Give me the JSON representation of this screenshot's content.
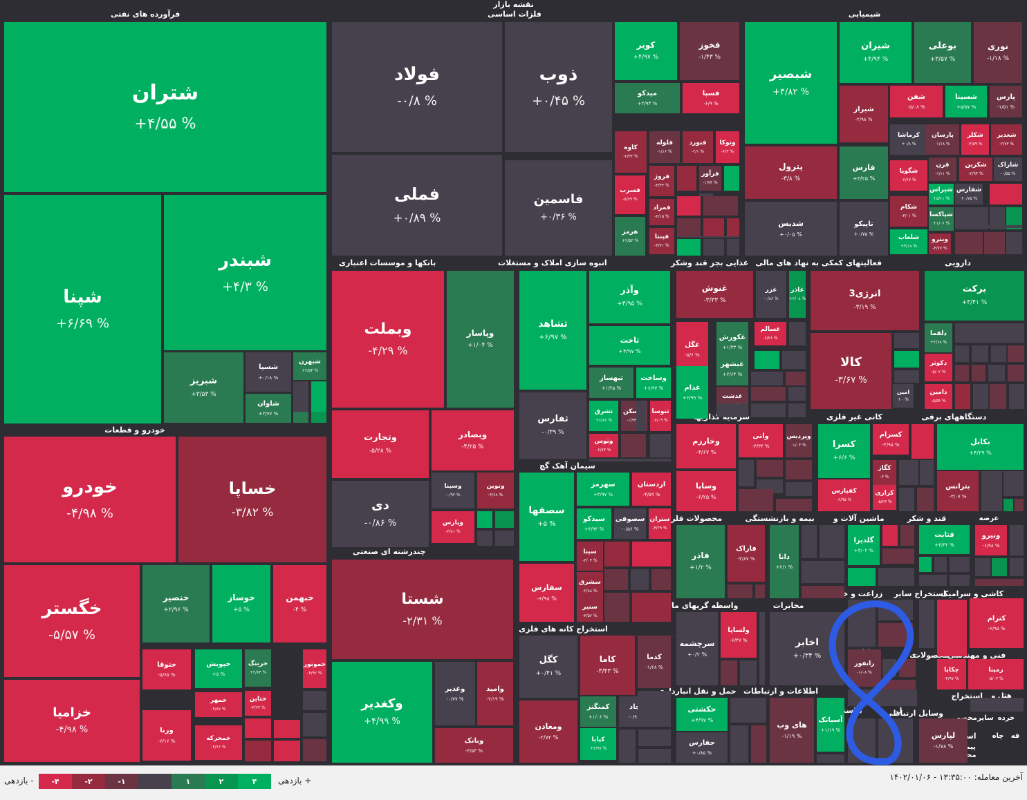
{
  "map_title": "نقشه بازار",
  "colors": {
    "g4": "#00b060",
    "g2": "#08954f",
    "g1": "#2a7a52",
    "neutral": "#46414c",
    "r1": "#6b3442",
    "r2": "#962b40",
    "r4": "#d4294a"
  },
  "sectors": [
    {
      "name": "فرآورده های نفتی"
    },
    {
      "name": "فلزات اساسی"
    },
    {
      "name": "شیمیایی"
    },
    {
      "name": "بانکها و موسسات اعتباری"
    },
    {
      "name": "انبوه سازی املاک و مستغلات"
    },
    {
      "name": "غذایی بجز قند وشکر"
    },
    {
      "name": "فعالیتهای کمکی به نهاد های مالی"
    },
    {
      "name": "دارویی"
    },
    {
      "name": "خودرو و قطعات"
    },
    {
      "name": "سیمان آهک گچ"
    },
    {
      "name": "سرمایه گذاریها"
    },
    {
      "name": "کانی غیر فلزی"
    },
    {
      "name": "دستگاههای برقی"
    },
    {
      "name": "چندرشته ای صنعتی"
    },
    {
      "name": "محصولات فلزی"
    },
    {
      "name": "بیمه و بازنشستگی"
    },
    {
      "name": "ماشین آلات و"
    },
    {
      "name": "قند و شکر"
    },
    {
      "name": "عرضه"
    },
    {
      "name": "واسطه گریهای مالی و پولی"
    },
    {
      "name": "مخابرات"
    },
    {
      "name": "زراعت و خدمات"
    },
    {
      "name": "استخراج سایر"
    },
    {
      "name": "کاشی و سرامیک"
    },
    {
      "name": "استخراج کانه های فلزی"
    },
    {
      "name": "رایانه"
    },
    {
      "name": "محصولات"
    },
    {
      "name": "فنی و مهندسی"
    },
    {
      "name": "حمل و نقل انبارداری و"
    },
    {
      "name": "اطلاعات و ارتباطات"
    },
    {
      "name": "هتل و"
    },
    {
      "name": "استخراج"
    },
    {
      "name": "بلاستیک"
    },
    {
      "name": "وسایل ارتباطی"
    },
    {
      "name": "خرده"
    },
    {
      "name": "سایر"
    },
    {
      "name": "محصو"
    },
    {
      "name": "فه"
    },
    {
      "name": "چاه"
    },
    {
      "name": "استخ"
    },
    {
      "name": "پیمانا"
    },
    {
      "name": "محص"
    },
    {
      "name": "ل"
    },
    {
      "name": "ی"
    }
  ],
  "tiles": [
    {
      "s": "شتران",
      "p": "+۴/۵۵ %",
      "c": "g4"
    },
    {
      "s": "شپنا",
      "p": "+۶/۶۹ %",
      "c": "g4"
    },
    {
      "s": "شبندر",
      "p": "+۴/۳ %",
      "c": "g4"
    },
    {
      "s": "شبریز",
      "p": "+۳/۵۳ %",
      "c": "g1"
    },
    {
      "s": "شسپا",
      "p": "+۰/۱۸ %",
      "c": "neutral"
    },
    {
      "s": "شبهرن",
      "p": "+۲/۵۴ %",
      "c": "g1"
    },
    {
      "s": "شاوان",
      "p": "+۳/۷۷ %",
      "c": "g1"
    },
    {
      "s": "فولاد",
      "p": "-۰/۸ %",
      "c": "neutral"
    },
    {
      "s": "فملی",
      "p": "+۰/۸۹ %",
      "c": "neutral"
    },
    {
      "s": "ذوب",
      "p": "+۰/۴۵ %",
      "c": "neutral"
    },
    {
      "s": "فاسمین",
      "p": "+۰/۳۶ %",
      "c": "neutral"
    },
    {
      "s": "کویر",
      "p": "+۴/۹۷ %",
      "c": "g4"
    },
    {
      "s": "فخوز",
      "p": "-۱/۴۳ %",
      "c": "r1"
    },
    {
      "s": "میدکو",
      "p": "+۲/۹۳ %",
      "c": "g1"
    },
    {
      "s": "فسپا",
      "p": "-۶/۹ %",
      "c": "r4"
    },
    {
      "s": "کاوه",
      "p": "-۲/۳۴ %",
      "c": "r2"
    },
    {
      "s": "فلوله",
      "p": "-۱/۱۶ %",
      "c": "r1"
    },
    {
      "s": "فنورد",
      "p": "-۲/۱ %",
      "c": "r2"
    },
    {
      "s": "وتوکا",
      "p": "-۶/۳ %",
      "c": "r4"
    },
    {
      "s": "فروژ",
      "p": "-۳/۴۴ %",
      "c": "r2"
    },
    {
      "s": "فرآور",
      "p": "-۱/۷۳ %",
      "c": "r1"
    },
    {
      "s": "فسرب",
      "p": "-۵/۶۹ %",
      "c": "r4"
    },
    {
      "s": "فمراد",
      "p": "-۲/۱۵ %",
      "c": "r2"
    },
    {
      "s": "هرمز",
      "p": "+۲/۵۳ %",
      "c": "g1"
    },
    {
      "s": "فپنتا",
      "p": "-۳/۷۱ %",
      "c": "r2"
    },
    {
      "s": "شبصیر",
      "p": "+۴/۸۲ %",
      "c": "g4"
    },
    {
      "s": "شیران",
      "p": "+۴/۹۴ %",
      "c": "g4"
    },
    {
      "s": "بوعلی",
      "p": "+۳/۵۷ %",
      "c": "g1"
    },
    {
      "s": "نوری",
      "p": "-۱/۱۸ %",
      "c": "r1"
    },
    {
      "s": "شیراز",
      "p": "-۲/۹۸ %",
      "c": "r2"
    },
    {
      "s": "شفن",
      "p": "-۵/۰۸ %",
      "c": "r4"
    },
    {
      "s": "شسینا",
      "p": "+۵/۵۷ %",
      "c": "g4"
    },
    {
      "s": "پارس",
      "p": "-۱/۵۱ %",
      "c": "r1"
    },
    {
      "s": "پترول",
      "p": "-۳/۸ %",
      "c": "r2"
    },
    {
      "s": "کرماشا",
      "p": "+۰/۸ %",
      "c": "neutral"
    },
    {
      "s": "پارسان",
      "p": "-۱/۱۸ %",
      "c": "r1"
    },
    {
      "s": "شکلر",
      "p": "-۴/۵۹ %",
      "c": "r4"
    },
    {
      "s": "شغدیر",
      "p": "-۲/۷۳ %",
      "c": "r2"
    },
    {
      "s": "فارس",
      "p": "+۳/۲۵ %",
      "c": "g1"
    },
    {
      "s": "شگویا",
      "p": "-۶/۶۷ %",
      "c": "r4"
    },
    {
      "s": "قرن",
      "p": "-۱/۱۱ %",
      "c": "r1"
    },
    {
      "s": "شکربن",
      "p": "-۲/۹۴ %",
      "c": "r2"
    },
    {
      "s": "شاراک",
      "p": "-۰/۵۵ %",
      "c": "neutral"
    },
    {
      "s": "شیراس",
      "p": "+۵/۱۱ %",
      "c": "g4"
    },
    {
      "s": "شفارس",
      "p": "+۰/۷۵ %",
      "c": "neutral"
    },
    {
      "s": "شکام",
      "p": "-۳/۰۱ %",
      "c": "r2"
    },
    {
      "s": "شپاکسا",
      "p": "+۱/۰۶ %",
      "c": "g1"
    },
    {
      "s": "شدیس",
      "p": "+۰/۰۵ %",
      "c": "neutral"
    },
    {
      "s": "تاپیکو",
      "p": "+۰/۷۵ %",
      "c": "neutral"
    },
    {
      "s": "شلعاب",
      "p": "+۴/۱۸ %",
      "c": "g4"
    },
    {
      "s": "ویترو",
      "p": "-۳/۷۷ %",
      "c": "r2"
    },
    {
      "s": "وبملت",
      "p": "-۴/۲۹ %",
      "c": "r4"
    },
    {
      "s": "وپاسار",
      "p": "+۱/۰۴ %",
      "c": "g1"
    },
    {
      "s": "وتجارت",
      "p": "-۵/۲۸ %",
      "c": "r4"
    },
    {
      "s": "وبصادر",
      "p": "-۴/۲۵ %",
      "c": "r4"
    },
    {
      "s": "دی",
      "p": "-۰/۸۶ %",
      "c": "neutral"
    },
    {
      "s": "وسینا",
      "p": "-۰/۹۲ %",
      "c": "neutral"
    },
    {
      "s": "ونوین",
      "p": "-۳/۶۸ %",
      "c": "r2"
    },
    {
      "s": "وپارس",
      "p": "-۴/۸۱ %",
      "c": "r4"
    },
    {
      "s": "ثشاهد",
      "p": "+۶/۹۷ %",
      "c": "g4"
    },
    {
      "s": "وآذر",
      "p": "+۴/۹۵ %",
      "c": "g4"
    },
    {
      "s": "ثاخت",
      "p": "+۴/۹۷ %",
      "c": "g4"
    },
    {
      "s": "ثبهساز",
      "p": "+۱/۲۵ %",
      "c": "g1"
    },
    {
      "s": "وساخت",
      "p": "+۶/۹۷ %",
      "c": "g4"
    },
    {
      "s": "ثفارس",
      "p": "-۰/۳۹ %",
      "c": "neutral"
    },
    {
      "s": "ثشرق",
      "p": "+۶/۸۶ %",
      "c": "g4"
    },
    {
      "s": "ثمسکن",
      "p": "-۱/۹۳ %",
      "c": "r1"
    },
    {
      "s": "ثنوسا",
      "p": "-۶/۰۹ %",
      "c": "r4"
    },
    {
      "s": "وتوس",
      "p": "-۶/۷۴ %",
      "c": "r4"
    },
    {
      "s": "غنوش",
      "p": "-۳/۳۳ %",
      "c": "r2"
    },
    {
      "s": "غزر",
      "p": "-۰/۸۶ %",
      "c": "neutral"
    },
    {
      "s": "غاذر",
      "p": "+۲/۰۸ %",
      "c": "g2"
    },
    {
      "s": "غگل",
      "p": "-۵/۶ %",
      "c": "r4"
    },
    {
      "s": "غکورش",
      "p": "+۱/۳۳ %",
      "c": "g1"
    },
    {
      "s": "غسالم",
      "p": "-۶/۲۸ %",
      "c": "r4"
    },
    {
      "s": "غبشهر",
      "p": "+۲/۶۴ %",
      "c": "g1"
    },
    {
      "s": "غدام",
      "p": "+۶/۹۹ %",
      "c": "g4"
    },
    {
      "s": "غدشت",
      "p": "-۱/۵۴ %",
      "c": "r1"
    },
    {
      "s": "انرژی3",
      "p": "-۳/۱۹ %",
      "c": "r2"
    },
    {
      "s": "کالا",
      "p": "-۳/۶۷ %",
      "c": "r2"
    },
    {
      "s": "امین",
      "p": "+۰ %",
      "c": "neutral"
    },
    {
      "s": "برکت",
      "p": "+۳/۴۱ %",
      "c": "g2"
    },
    {
      "s": "دلقما",
      "p": "+۲/۶۸ %",
      "c": "g1"
    },
    {
      "s": "دکوثر",
      "p": "-۵/۰۲ %",
      "c": "r4"
    },
    {
      "s": "دامین",
      "p": "-۵/۵۴ %",
      "c": "r4"
    },
    {
      "s": "خودرو",
      "p": "-۴/۹۸ %",
      "c": "r4"
    },
    {
      "s": "خساپا",
      "p": "-۳/۸۲ %",
      "c": "r2"
    },
    {
      "s": "خگستر",
      "p": "-۵/۵۷ %",
      "c": "r4"
    },
    {
      "s": "خنصیر",
      "p": "+۲/۹۶ %",
      "c": "g1"
    },
    {
      "s": "خوساز",
      "p": "+۵ %",
      "c": "g4"
    },
    {
      "s": "خبهمن",
      "p": "-۴ %",
      "c": "r4"
    },
    {
      "s": "خزامیا",
      "p": "-۴/۹۸ %",
      "c": "r4"
    },
    {
      "s": "ختوقا",
      "p": "-۵/۶۵ %",
      "c": "r4"
    },
    {
      "s": "خپویش",
      "p": "+۵ %",
      "c": "g4"
    },
    {
      "s": "خرینگ",
      "p": "+۲/۶۴ %",
      "c": "g1"
    },
    {
      "s": "خموتور",
      "p": "-۴/۹۲ %",
      "c": "r4"
    },
    {
      "s": "خمهر",
      "p": "-۴/۸۷ %",
      "c": "r4"
    },
    {
      "s": "ختاین",
      "p": "-۴/۲۴ %",
      "c": "r4"
    },
    {
      "s": "ورنا",
      "p": "-۶/۱۶ %",
      "c": "r4"
    },
    {
      "s": "خمحرکه",
      "p": "-۴/۶۶ %",
      "c": "r4"
    },
    {
      "s": "سصفها",
      "p": "+۵ %",
      "c": "g4"
    },
    {
      "s": "سهرمز",
      "p": "+۴/۹۷ %",
      "c": "g4"
    },
    {
      "s": "اردستان",
      "p": "-۴/۵۹ %",
      "c": "r4"
    },
    {
      "s": "سیدکو",
      "p": "+۴/۹۴ %",
      "c": "g4"
    },
    {
      "s": "سصوفی",
      "p": "-۰/۵۶ %",
      "c": "neutral"
    },
    {
      "s": "ستران",
      "p": "-۴/۲۹ %",
      "c": "r4"
    },
    {
      "s": "سفارس",
      "p": "-۶/۹۸ %",
      "c": "r4"
    },
    {
      "s": "سیتا",
      "p": "-۳/۰۴ %",
      "c": "r2"
    },
    {
      "s": "سشرق",
      "p": "-۲/۸۸ %",
      "c": "r2"
    },
    {
      "s": "سنیر",
      "p": "-۳/۵۶ %",
      "c": "r2"
    },
    {
      "s": "وخارزم",
      "p": "-۴/۶۷ %",
      "c": "r4"
    },
    {
      "s": "واتی",
      "p": "-۴/۳۳ %",
      "c": "r4"
    },
    {
      "s": "وپردیس",
      "p": "-۱/۰۴ %",
      "c": "r1"
    },
    {
      "s": "وساپا",
      "p": "-۶/۲۵ %",
      "c": "r4"
    },
    {
      "s": "کسرا",
      "p": "+۶/۶ %",
      "c": "g4"
    },
    {
      "s": "کسرام",
      "p": "-۴/۹۵ %",
      "c": "r4"
    },
    {
      "s": "کگاز",
      "p": "-۳ %",
      "c": "r2"
    },
    {
      "s": "کفپارس",
      "p": "-۶/۹۵ %",
      "c": "r4"
    },
    {
      "s": "کزاری",
      "p": "-۵/۲۳ %",
      "c": "r4"
    },
    {
      "s": "بکابل",
      "p": "+۴/۲۹ %",
      "c": "g4"
    },
    {
      "s": "بترانس",
      "p": "-۳/۰۷ %",
      "c": "r2"
    },
    {
      "s": "شستا",
      "p": "-۲/۳۱ %",
      "c": "r2"
    },
    {
      "s": "وکغدیر",
      "p": "+۴/۹۹ %",
      "c": "g4"
    },
    {
      "s": "وغدیر",
      "p": "-۰/۷۷ %",
      "c": "neutral"
    },
    {
      "s": "وامید",
      "p": "-۲/۱۹ %",
      "c": "r2"
    },
    {
      "s": "وبانک",
      "p": "-۳/۵۳ %",
      "c": "r2"
    },
    {
      "s": "فاذر",
      "p": "+۱/۲ %",
      "c": "g1"
    },
    {
      "s": "فاراک",
      "p": "-۳/۸۷ %",
      "c": "r2"
    },
    {
      "s": "دانا",
      "p": "+۲/۱ %",
      "c": "g1"
    },
    {
      "s": "گلدیرا",
      "p": "+۴/۰۲ %",
      "c": "g4"
    },
    {
      "s": "قثابت",
      "p": "+۴/۳۲ %",
      "c": "g4"
    },
    {
      "s": "ونیرو",
      "p": "-۶/۹۸ %",
      "c": "r4"
    },
    {
      "s": "سرچشمه",
      "p": "+۰/۲ %",
      "c": "neutral"
    },
    {
      "s": "ولساپا",
      "p": "-۶/۴۷ %",
      "c": "r4"
    },
    {
      "s": "اخابر",
      "p": "+۰/۳۴ %",
      "c": "neutral"
    },
    {
      "s": "کترام",
      "p": "-۶/۹۵ %",
      "c": "r4"
    },
    {
      "s": "کگل",
      "p": "+۰/۴۱ %",
      "c": "neutral"
    },
    {
      "s": "کاما",
      "p": "-۳/۴۳ %",
      "c": "r2"
    },
    {
      "s": "کدما",
      "p": "-۱/۶۸ %",
      "c": "r1"
    },
    {
      "s": "کمنگنز",
      "p": "+۱/۰۶ %",
      "c": "g1"
    },
    {
      "s": "کچاد",
      "p": "-۰/۹۱ %",
      "c": "neutral"
    },
    {
      "s": "ومعادن",
      "p": "-۲/۷۲ %",
      "c": "r2"
    },
    {
      "s": "کپایا",
      "p": "+۴/۹۷ %",
      "c": "g4"
    },
    {
      "s": "رانفور",
      "p": "-۱/۰۸ %",
      "c": "r1"
    },
    {
      "s": "چکاپا",
      "p": "-۴/۹۷ %",
      "c": "r4"
    },
    {
      "s": "رمپنا",
      "p": "-۵/۰۳ %",
      "c": "r4"
    },
    {
      "s": "حکشتی",
      "p": "+۴/۹۷ %",
      "c": "g4"
    },
    {
      "s": "حفارس",
      "p": "+۰/۸۵ %",
      "c": "neutral"
    },
    {
      "s": "های وب",
      "p": "-۱/۱۹ %",
      "c": "r1"
    },
    {
      "s": "آسیاتک",
      "p": "+۱/۱۹ %",
      "c": "g4"
    },
    {
      "s": "لپارس",
      "p": "-۱/۷۸ %",
      "c": "r1"
    },
    {
      "s": "",
      "p": "",
      "c": "g4"
    },
    {
      "s": "",
      "p": "",
      "c": "g2"
    },
    {
      "s": "",
      "p": "",
      "c": "g1"
    },
    {
      "s": "",
      "p": "",
      "c": "neutral"
    },
    {
      "s": "",
      "p": "",
      "c": "r1"
    },
    {
      "s": "",
      "p": "",
      "c": "r2"
    },
    {
      "s": "",
      "p": "",
      "c": "r4"
    }
  ],
  "footer": {
    "last_trade": "آخرین معامله: ۱۳:۳۵:۰۰ - ۱۴۰۲/۰۱/۰۶",
    "legend_neg_label": "بازدهی -",
    "legend_pos_label": "بازدهی +",
    "legend": [
      {
        "label": "-۴",
        "c": "r4"
      },
      {
        "label": "-۲",
        "c": "r2"
      },
      {
        "label": "-۱",
        "c": "r1"
      },
      {
        "label": "",
        "c": "neutral"
      },
      {
        "label": "۱",
        "c": "g1"
      },
      {
        "label": "۲",
        "c": "g2"
      },
      {
        "label": "۴",
        "c": "g4"
      }
    ]
  }
}
